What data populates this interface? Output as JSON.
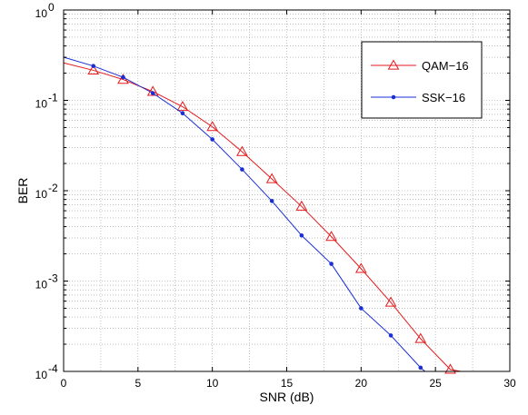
{
  "chart_data": {
    "type": "line",
    "xlabel": "SNR (dB)",
    "ylabel": "BER",
    "xlim": [
      0,
      30
    ],
    "ylim": [
      0.0001,
      1
    ],
    "yscale": "log",
    "grid": true,
    "legend_position": "top-right",
    "x_ticks": [
      "0",
      "5",
      "10",
      "15",
      "20",
      "25",
      "30"
    ],
    "y_ticks": [
      {
        "base": "10",
        "exp": "0",
        "value": 1
      },
      {
        "base": "10",
        "exp": "-1",
        "value": 0.1
      },
      {
        "base": "10",
        "exp": "-2",
        "value": 0.01
      },
      {
        "base": "10",
        "exp": "-3",
        "value": 0.001
      },
      {
        "base": "10",
        "exp": "-4",
        "value": 0.0001
      }
    ],
    "series": [
      {
        "name": "QAM−16",
        "color": "#e41a1c",
        "marker": "triangle",
        "x": [
          0,
          2,
          4,
          6,
          8,
          10,
          12,
          14,
          16,
          18,
          20,
          22,
          24,
          26,
          26.7
        ],
        "y": [
          0.26,
          0.215,
          0.17,
          0.125,
          0.085,
          0.051,
          0.027,
          0.0135,
          0.0067,
          0.0031,
          0.00137,
          0.00058,
          0.00023,
          0.000105,
          0.0001
        ],
        "marker_x": [
          2,
          4,
          6,
          8,
          10,
          12,
          14,
          16,
          18,
          20,
          22,
          24,
          26
        ]
      },
      {
        "name": "SSK−16",
        "color": "#1a2fd6",
        "marker": "dot",
        "x": [
          0,
          2,
          4,
          6,
          8,
          10,
          12,
          14,
          16,
          18,
          20,
          22,
          24,
          24.3
        ],
        "y": [
          0.3,
          0.24,
          0.18,
          0.12,
          0.072,
          0.037,
          0.0172,
          0.0077,
          0.0032,
          0.00155,
          0.0005,
          0.00025,
          0.00011,
          0.0001
        ],
        "marker_x": [
          2,
          4,
          6,
          8,
          10,
          12,
          14,
          16,
          18,
          20,
          22,
          24
        ]
      }
    ]
  }
}
